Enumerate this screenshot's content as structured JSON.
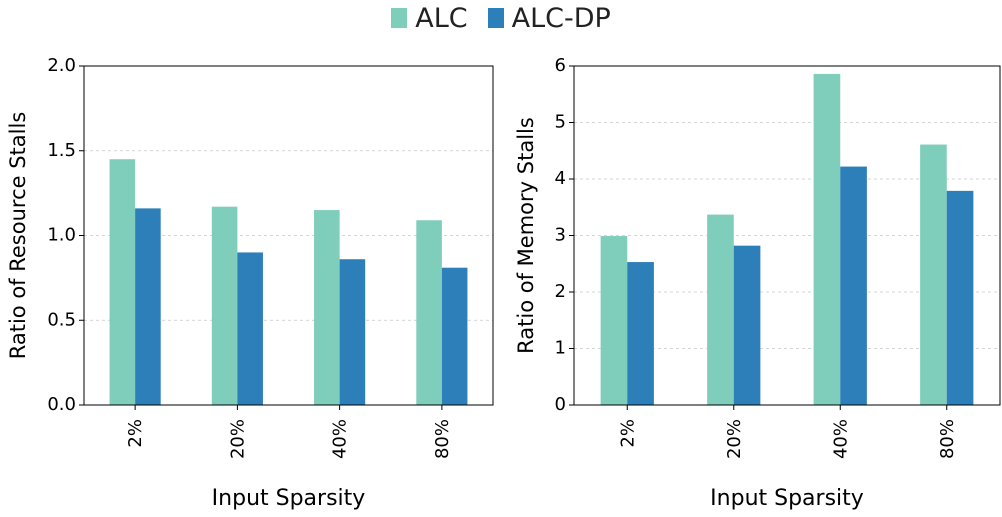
{
  "legend": {
    "items": [
      {
        "name": "ALC",
        "color": "#7fcdbb"
      },
      {
        "name": "ALC-DP",
        "color": "#2c7fb8"
      }
    ],
    "placement": "top-center"
  },
  "chart_data": [
    {
      "type": "bar",
      "categories": [
        "2%",
        "20%",
        "40%",
        "80%"
      ],
      "series": [
        {
          "name": "ALC",
          "values": [
            1.45,
            1.17,
            1.15,
            1.09
          ]
        },
        {
          "name": "ALC-DP",
          "values": [
            1.16,
            0.9,
            0.86,
            0.81
          ]
        }
      ],
      "xlabel": "Input Sparsity",
      "ylabel": "Ratio of Resource Stalls",
      "ylim": [
        0,
        2.0
      ],
      "yticks": [
        "0.0",
        "0.5",
        "1.0",
        "1.5",
        "2.0"
      ],
      "ytick_values": [
        0,
        0.5,
        1.0,
        1.5,
        2.0
      ],
      "grid": "horizontal-dashed"
    },
    {
      "type": "bar",
      "categories": [
        "2%",
        "20%",
        "40%",
        "80%"
      ],
      "series": [
        {
          "name": "ALC",
          "values": [
            2.99,
            3.37,
            5.86,
            4.61
          ]
        },
        {
          "name": "ALC-DP",
          "values": [
            2.53,
            2.82,
            4.22,
            3.79
          ]
        }
      ],
      "xlabel": "Input Sparsity",
      "ylabel": "Ratio of Memory Stalls",
      "ylim": [
        0,
        6
      ],
      "yticks": [
        "0",
        "1",
        "2",
        "3",
        "4",
        "5",
        "6"
      ],
      "ytick_values": [
        0,
        1,
        2,
        3,
        4,
        5,
        6
      ],
      "grid": "horizontal-dashed"
    }
  ]
}
